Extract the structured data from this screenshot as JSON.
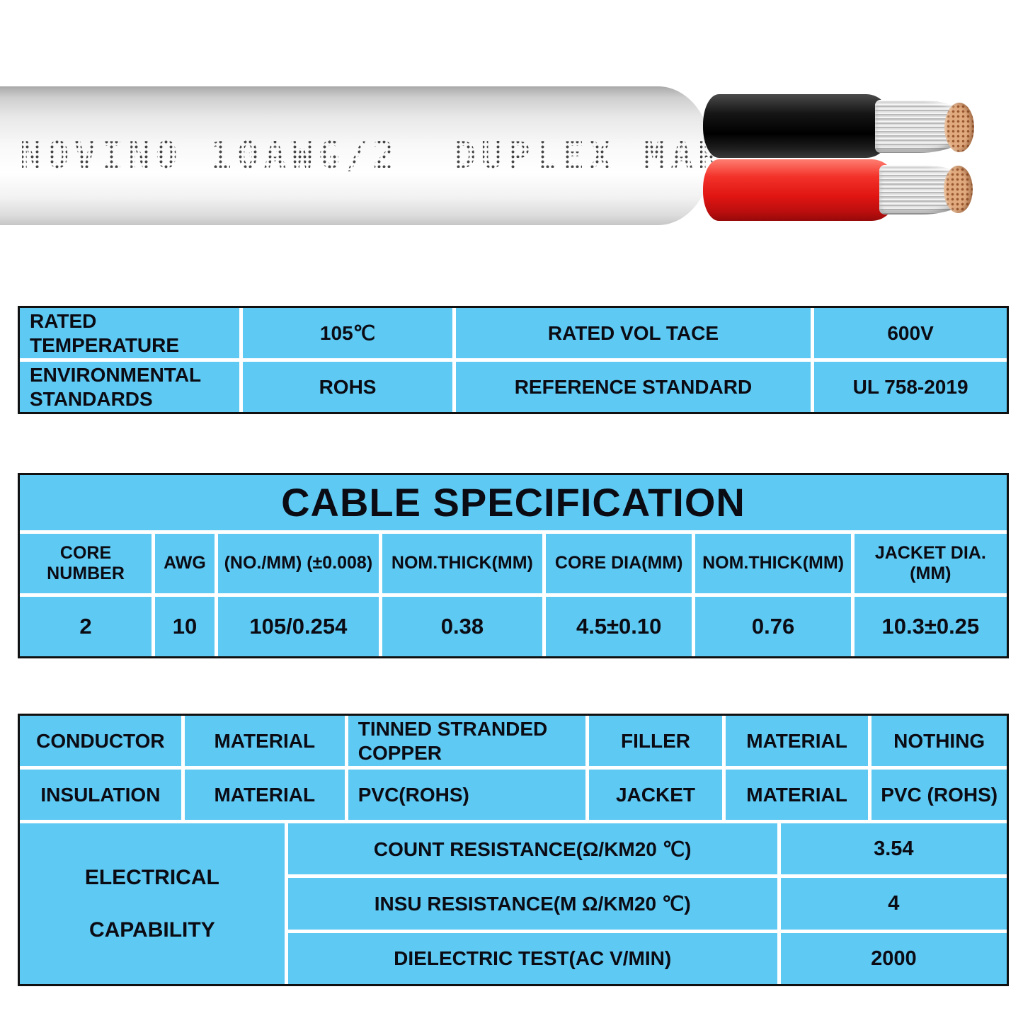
{
  "cable_photo": {
    "jacket_print": "NOVINO 10AWG/2  DUPLEX MAR",
    "jacket_color": "#f5f5f5",
    "wire1_color": "#0d0d0d",
    "wire2_color": "#e01512",
    "conductor_tip_color": "#e0a97e"
  },
  "style": {
    "table_bg": "#5ec9f2",
    "table_border": "#101010",
    "cell_divider": "#ffffff",
    "text_color": "#0b0b14"
  },
  "ratings_table": {
    "rows": [
      {
        "label1": "RATED\nTEMPERATURE",
        "value1": "105℃",
        "label2": "RATED VOL TACE",
        "value2": "600V"
      },
      {
        "label1": "ENVIRONMENTAL\nSTANDARDS",
        "value1": "ROHS",
        "label2": "REFERENCE STANDARD",
        "value2": "UL 758-2019"
      }
    ]
  },
  "spec_table": {
    "title": "CABLE SPECIFICATION",
    "headers": [
      "CORE NUMBER",
      "AWG",
      "(NO./MM) (±0.008)",
      "NOM.THICK(MM)",
      "CORE DIA(MM)",
      "NOM.THICK(MM)",
      "JACKET DIA.(MM)"
    ],
    "values": [
      "2",
      "10",
      "105/0.254",
      "0.38",
      "4.5±0.10",
      "0.76",
      "10.3±0.25"
    ]
  },
  "materials_table": {
    "rows": [
      {
        "item": "CONDUCTOR",
        "attr": "MATERIAL",
        "value": "TINNED STRANDED\nCOPPER",
        "item2": "FILLER",
        "attr2": "MATERIAL",
        "value2": "NOTHING"
      },
      {
        "item": "INSULATION",
        "attr": "MATERIAL",
        "value": "PVC(ROHS)",
        "item2": "JACKET",
        "attr2": "MATERIAL",
        "value2": "PVC (ROHS)"
      }
    ],
    "electrical": {
      "label": "ELECTRICAL\nCAPABILITY",
      "rows": [
        {
          "name": "COUNT RESISTANCE(Ω/KM20 ℃)",
          "value": "3.54"
        },
        {
          "name": "INSU RESISTANCE(M Ω/KM20 ℃)",
          "value": "4"
        },
        {
          "name": "DIELECTRIC TEST(AC V/MIN)",
          "value": "2000"
        }
      ]
    }
  }
}
